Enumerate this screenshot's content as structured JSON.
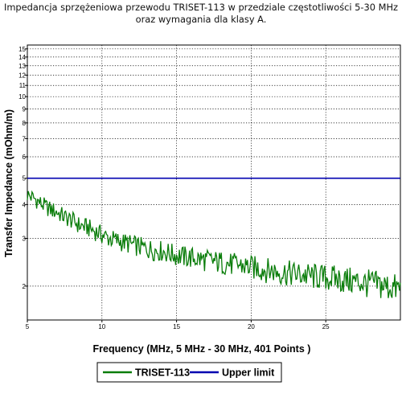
{
  "chart_data": {
    "type": "line",
    "title_line1": "Impedancja sprzężeniowa przewodu TRISET-113 w przedziale częstotliwości 5-30 MHz",
    "title_line2": "oraz wymagania dla klasy A.",
    "xlabel": "Frequency (MHz, 5 MHz - 30 MHz, 401 Points )",
    "ylabel": "Transfer Impedance (mOhm/m)",
    "xlim": [
      5,
      30
    ],
    "ylim": [
      1.5,
      15.5
    ],
    "yscale": "log",
    "grid": true,
    "legend_position": "bottom",
    "x_ticks": [
      "5",
      "10",
      "15",
      "20",
      "25"
    ],
    "x_tick_values": [
      5,
      10,
      15,
      20,
      25
    ],
    "y_ticks": [
      "2",
      "3",
      "4",
      "5",
      "6",
      "7",
      "8",
      "9",
      "10",
      "11",
      "12",
      "13",
      "14",
      "15"
    ],
    "y_tick_values": [
      2,
      3,
      4,
      5,
      6,
      7,
      8,
      9,
      10,
      11,
      12,
      13,
      14,
      15
    ],
    "series": [
      {
        "name": "TRISET-113",
        "color": "#0a7d0a",
        "x": [
          5,
          5.5,
          6,
          6.5,
          7,
          7.5,
          8,
          8.5,
          9,
          9.5,
          10,
          10.5,
          11,
          11.5,
          12,
          12.5,
          13,
          13.5,
          14,
          14.5,
          15,
          15.5,
          16,
          16.5,
          17,
          17.5,
          18,
          18.5,
          19,
          19.5,
          20,
          20.5,
          21,
          21.5,
          22,
          22.5,
          23,
          23.5,
          24,
          24.5,
          25,
          25.5,
          26,
          26.5,
          27,
          27.5,
          28,
          28.5,
          29,
          29.5,
          30
        ],
        "values": [
          4.35,
          4.2,
          4.0,
          3.85,
          3.75,
          3.6,
          3.5,
          3.35,
          3.3,
          3.2,
          3.1,
          3.0,
          2.95,
          2.9,
          2.85,
          2.8,
          2.75,
          2.72,
          2.7,
          2.65,
          2.6,
          2.57,
          2.55,
          2.52,
          2.5,
          2.47,
          2.45,
          2.42,
          2.4,
          2.38,
          2.35,
          2.33,
          2.3,
          2.28,
          2.25,
          2.24,
          2.22,
          2.2,
          2.18,
          2.17,
          2.15,
          2.14,
          2.12,
          2.1,
          2.08,
          2.06,
          2.05,
          2.03,
          2.0,
          1.98,
          1.95
        ]
      },
      {
        "name": "Upper limit",
        "color": "#0000b0",
        "x": [
          5,
          30
        ],
        "values": [
          5,
          5
        ]
      }
    ]
  }
}
